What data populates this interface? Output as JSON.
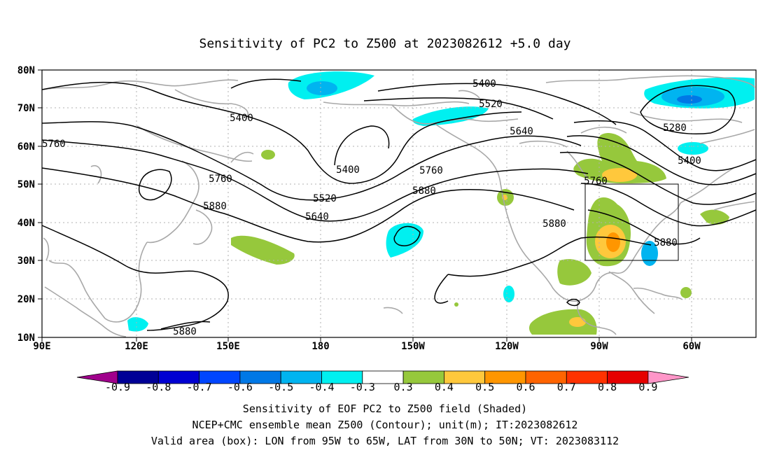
{
  "title": "Sensitivity of PC2 to Z500 at 2023082612 +5.0 day",
  "lat_labels": [
    "80N",
    "70N",
    "60N",
    "50N",
    "40N",
    "30N",
    "20N",
    "10N"
  ],
  "lon_labels": [
    "90E",
    "120E",
    "150E",
    "180",
    "150W",
    "120W",
    "90W",
    "60W"
  ],
  "contour_labels": [
    "5400",
    "5400",
    "5400",
    "5400",
    "5280",
    "5520",
    "5520",
    "5640",
    "5640",
    "5760",
    "5760",
    "5760",
    "5760",
    "5880",
    "5880",
    "5880",
    "5880",
    "5880"
  ],
  "colorbar": {
    "labels": [
      "-0.9",
      "-0.8",
      "-0.7",
      "-0.6",
      "-0.5",
      "-0.4",
      "-0.3",
      "0.3",
      "0.4",
      "0.5",
      "0.6",
      "0.7",
      "0.8",
      "0.9"
    ],
    "colors": [
      "#a0008c",
      "#000096",
      "#0000d2",
      "#0046ff",
      "#0078e6",
      "#00b4f0",
      "#00f0f0",
      "#ffffff",
      "#96c83c",
      "#ffc83c",
      "#ff9600",
      "#ff6400",
      "#ff3200",
      "#e60000",
      "#ff96c8"
    ]
  },
  "footer": [
    "Sensitivity of EOF PC2 to Z500 field (Shaded)",
    "NCEP+CMC ensemble mean Z500 (Contour); unit(m); IT:2023082612",
    "Valid area (box): LON from 95W to 65W, LAT from 30N to 50N; VT: 2023083112"
  ]
}
